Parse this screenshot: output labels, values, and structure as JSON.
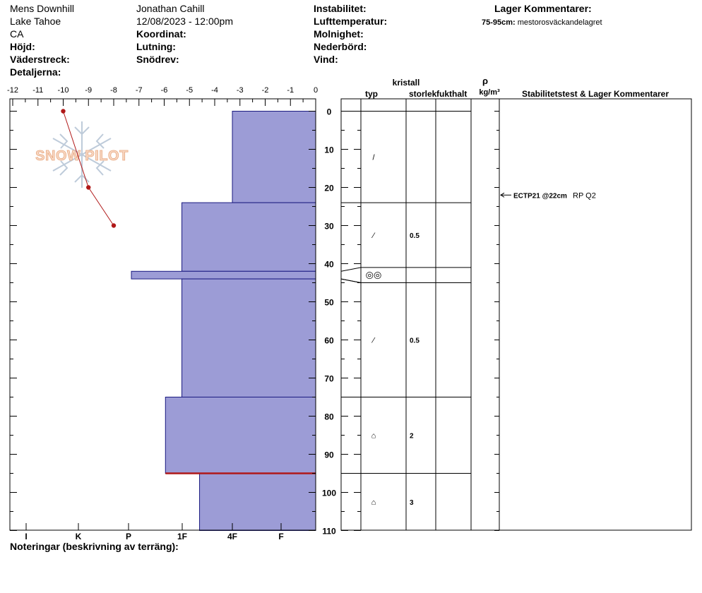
{
  "header": {
    "col1": [
      "Mens Downhill",
      "Lake Tahoe",
      "CA"
    ],
    "observer": "Jonathan Cahill",
    "datetime": "12/08/2023 - 12:00pm",
    "labels": {
      "hojd": "Höjd:",
      "vaderstreck": "Väderstreck:",
      "detaljerna": "Detaljerna:",
      "koordinat": "Koordinat:",
      "lutning": "Lutning:",
      "snodrev": "Snödrev:",
      "instabilitet": "Instabilitet:",
      "lufttemperatur": "Lufttemperatur:",
      "molnighet": "Molnighet:",
      "nederbord": "Nederbörd:",
      "vind": "Vind:",
      "lager_kommentarer": "Lager Kommentarer:"
    },
    "layer_comment_depth": "75-95cm:",
    "layer_comment_text": "mestorosväckandelagret"
  },
  "notes_label": "Noteringar (beskrivning av terräng):",
  "watermark": "SNOW PILOT",
  "table_headers": {
    "kristall": "kristall",
    "typ": "typ",
    "storlek": "storlek",
    "fukthalt": "fukthalt",
    "rho": "ρ",
    "density_unit": "kg/m³",
    "stability": "Stabilitetstest & Lager Kommentarer"
  },
  "stability_test": {
    "code": "ECTP21 @22cm",
    "extra": "RP Q2",
    "depth_cm": 22
  },
  "chart_data": {
    "type": "snow-profile",
    "temperature_axis": {
      "ticks": [
        "-12",
        "-11",
        "-10",
        "-9",
        "-8",
        "-7",
        "-6",
        "-5",
        "-4",
        "-3",
        "-2",
        "-1",
        "0"
      ],
      "range": [
        -12,
        0
      ]
    },
    "depth_axis": {
      "ticks": [
        "0",
        "10",
        "20",
        "30",
        "40",
        "50",
        "60",
        "70",
        "80",
        "90",
        "100",
        "110"
      ],
      "range": [
        0,
        110
      ]
    },
    "hardness_axis": {
      "ticks": [
        "I",
        "K",
        "P",
        "1F",
        "4F",
        "F"
      ]
    },
    "temperature_profile": [
      {
        "depth": 0,
        "temp": -10
      },
      {
        "depth": 20,
        "temp": -9
      },
      {
        "depth": 30,
        "temp": -8
      }
    ],
    "hardness_layers": [
      {
        "top": 0,
        "bottom": 24,
        "hardness_temp_equiv": -3.3
      },
      {
        "top": 24,
        "bottom": 42,
        "hardness_temp_equiv": -5.3
      },
      {
        "top": 42,
        "bottom": 44,
        "hardness_temp_equiv": -7.3
      },
      {
        "top": 44,
        "bottom": 75,
        "hardness_temp_equiv": -5.3
      },
      {
        "top": 75,
        "bottom": 95,
        "hardness_temp_equiv": -5.95
      },
      {
        "top": 95,
        "bottom": 110,
        "hardness_temp_equiv": -4.6
      }
    ],
    "critical_layer_depth": 95,
    "layers_table": [
      {
        "top": 0,
        "bottom": 24,
        "type_symbol": "/",
        "size": ""
      },
      {
        "top": 24,
        "bottom": 41,
        "type_symbol": "⁄",
        "size": "0.5"
      },
      {
        "top": 41,
        "bottom": 45,
        "type_symbol": "◎◎",
        "size": ""
      },
      {
        "top": 45,
        "bottom": 75,
        "type_symbol": "⁄",
        "size": "0.5"
      },
      {
        "top": 75,
        "bottom": 95,
        "type_symbol": "⌂",
        "size": "2"
      },
      {
        "top": 95,
        "bottom": 110,
        "type_symbol": "⌂",
        "size": "3"
      }
    ]
  }
}
